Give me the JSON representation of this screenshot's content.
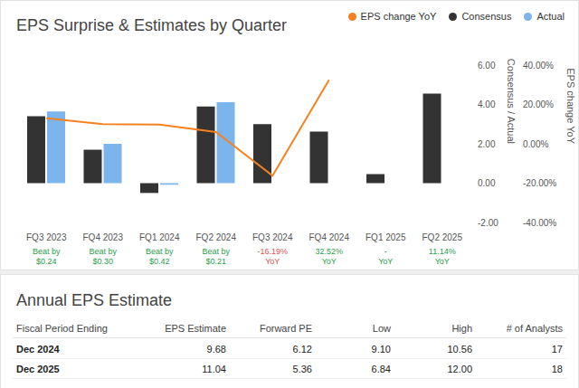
{
  "chart_data": {
    "type": "bar",
    "title": "EPS Surprise & Estimates by Quarter",
    "categories": [
      "FQ3 2023",
      "FQ4 2023",
      "FQ1 2024",
      "FQ2 2024",
      "FQ3 2024",
      "FQ4 2024",
      "FQ1 2025",
      "FQ2 2025"
    ],
    "series": [
      {
        "name": "EPS change YoY",
        "type": "line",
        "color": "#f5821f",
        "axis": "y2",
        "values": [
          13,
          10,
          9.8,
          6,
          -16.19,
          32.52,
          null,
          null
        ]
      },
      {
        "name": "Consensus",
        "type": "bar",
        "color": "#333333",
        "values": [
          3.4,
          1.7,
          -0.5,
          3.9,
          3.0,
          2.62,
          0.46,
          4.55
        ]
      },
      {
        "name": "Actual",
        "type": "bar",
        "color": "#7cb5ec",
        "values": [
          3.64,
          2.0,
          -0.08,
          4.11,
          null,
          null,
          null,
          null
        ]
      }
    ],
    "y_label": "Consensus / Actual",
    "y2_label": "EPS change YoY",
    "ylim": [
      -2,
      6
    ],
    "yticks": [
      {
        "value": -2,
        "label": "-2.00"
      },
      {
        "value": 0,
        "label": "0.00"
      },
      {
        "value": 2,
        "label": "2.00"
      },
      {
        "value": 4,
        "label": "4.00"
      },
      {
        "value": 6,
        "label": "6.00"
      }
    ],
    "y2lim": [
      -40,
      40
    ],
    "y2ticks": [
      {
        "value": -40,
        "label": "-40.00%"
      },
      {
        "value": -20,
        "label": "-20.00%"
      },
      {
        "value": 0,
        "label": "0.00%"
      },
      {
        "value": 20,
        "label": "20.00%"
      },
      {
        "value": 40,
        "label": "40.00%"
      }
    ],
    "annotations": [
      {
        "lines": [
          "Beat by",
          "$0.24"
        ],
        "color": "#2a9d4a"
      },
      {
        "lines": [
          "Beat by",
          "$0.30"
        ],
        "color": "#2a9d4a"
      },
      {
        "lines": [
          "Beat by",
          "$0.42"
        ],
        "color": "#2a9d4a"
      },
      {
        "lines": [
          "Beat by",
          "$0.21"
        ],
        "color": "#2a9d4a"
      },
      {
        "lines": [
          "-16.19%",
          "YoY"
        ],
        "color": "#d9534f"
      },
      {
        "lines": [
          "32.52%",
          "YoY"
        ],
        "color": "#2a9d4a"
      },
      {
        "lines": [
          "-",
          "YoY"
        ],
        "color": "#2a9d4a"
      },
      {
        "lines": [
          "11.14%",
          "YoY"
        ],
        "color": "#2a9d4a"
      }
    ],
    "legend": "top-right",
    "grid": false
  },
  "table": {
    "title": "Annual EPS Estimate",
    "columns": [
      "Fiscal Period Ending",
      "EPS Estimate",
      "Forward PE",
      "Low",
      "High",
      "# of Analysts"
    ],
    "rows": [
      [
        "Dec 2024",
        "9.68",
        "6.12",
        "9.10",
        "10.56",
        "17"
      ],
      [
        "Dec 2025",
        "11.04",
        "5.36",
        "6.84",
        "12.00",
        "18"
      ]
    ]
  }
}
